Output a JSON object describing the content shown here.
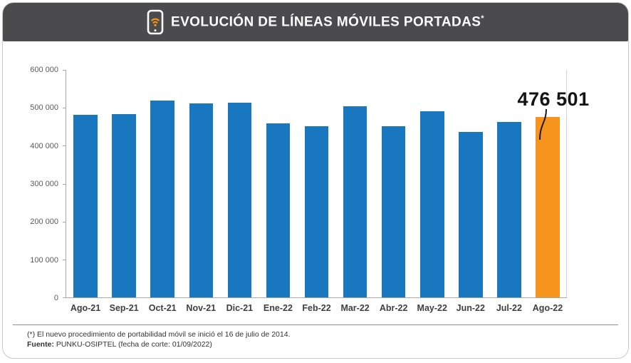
{
  "header": {
    "title": "EVOLUCIÓN DE LÍNEAS MÓVILES PORTADAS",
    "title_asterisk": "*",
    "bg_color": "#4b4b4d",
    "icon": "smartphone-wifi-icon"
  },
  "chart_data": {
    "type": "bar",
    "title": "EVOLUCIÓN DE LÍNEAS MÓVILES PORTADAS*",
    "categories": [
      "Ago-21",
      "Sep-21",
      "Oct-21",
      "Nov-21",
      "Dic-21",
      "Ene-22",
      "Feb-22",
      "Mar-22",
      "Abr-22",
      "May-22",
      "Jun-22",
      "Jul-22",
      "Ago-22"
    ],
    "values": [
      482000,
      483000,
      519000,
      511000,
      513000,
      459000,
      452000,
      505000,
      452000,
      490000,
      437000,
      462000,
      476501
    ],
    "ylim": [
      0,
      600000
    ],
    "yticks": [
      0,
      100000,
      200000,
      300000,
      400000,
      500000,
      600000
    ],
    "ytick_labels": [
      "0",
      "100 000",
      "200 000",
      "300 000",
      "400 000",
      "500 000",
      "600 000"
    ],
    "bar_color": "#1877be",
    "highlight_index": 12,
    "highlight_color": "#f7941e",
    "annotation": {
      "text": "476 501",
      "index": 12
    },
    "xlabel": "",
    "ylabel": "",
    "grid": false,
    "legend": false
  },
  "footer": {
    "note": "(*) El nuevo procedimiento de portabilidad móvil se inició el 16 de julio de 2014.",
    "source_label": "Fuente:",
    "source_text": " PUNKU-OSIPTEL (fecha de corte: 01/09/2022)"
  }
}
